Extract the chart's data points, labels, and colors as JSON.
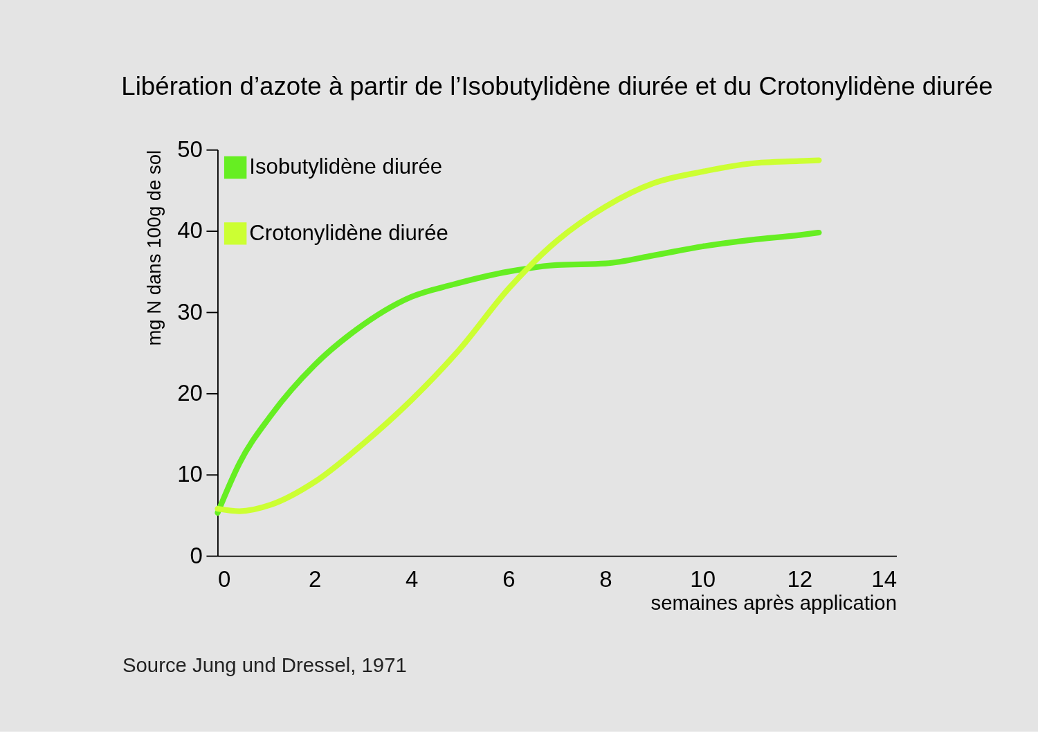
{
  "chart_data": {
    "type": "line",
    "title": "Libération d’azote à partir de l’Isobutylidène diurée et du Crotonylidène diurée",
    "xlabel": "semaines après application",
    "ylabel": "mg N dans 100g de sol",
    "xlim": [
      0,
      14
    ],
    "ylim": [
      0,
      50
    ],
    "xticks": [
      0,
      2,
      4,
      6,
      8,
      10,
      12,
      14
    ],
    "yticks": [
      0,
      10,
      20,
      30,
      40,
      50
    ],
    "grid": false,
    "legend": "top left",
    "line_style": "solid",
    "series": [
      {
        "name": "Isobutylidène diurée",
        "color": "#66ee22",
        "x": [
          0,
          0.45,
          1.1,
          2,
          2.85,
          4,
          4.85,
          6,
          7,
          8,
          9,
          10,
          11,
          12,
          12.4
        ],
        "values": [
          5.3,
          11.4,
          17.3,
          23.5,
          27.8,
          31.9,
          33.4,
          35,
          35.8,
          36,
          37,
          38.1,
          38.9,
          39.5,
          39.8
        ]
      },
      {
        "name": "Crotonylidène diurée",
        "color": "#ccff33",
        "x": [
          0,
          0.45,
          1.1,
          2,
          3,
          4,
          5,
          6,
          7,
          8,
          9,
          10,
          11,
          12,
          12.4
        ],
        "values": [
          5.8,
          5.5,
          6.3,
          9.1,
          13.8,
          19.2,
          25.5,
          32.9,
          38.8,
          43,
          45.9,
          47.3,
          48.3,
          48.6,
          48.7
        ]
      }
    ],
    "annotations": [
      "Source Jung und Dressel, 1971"
    ]
  }
}
